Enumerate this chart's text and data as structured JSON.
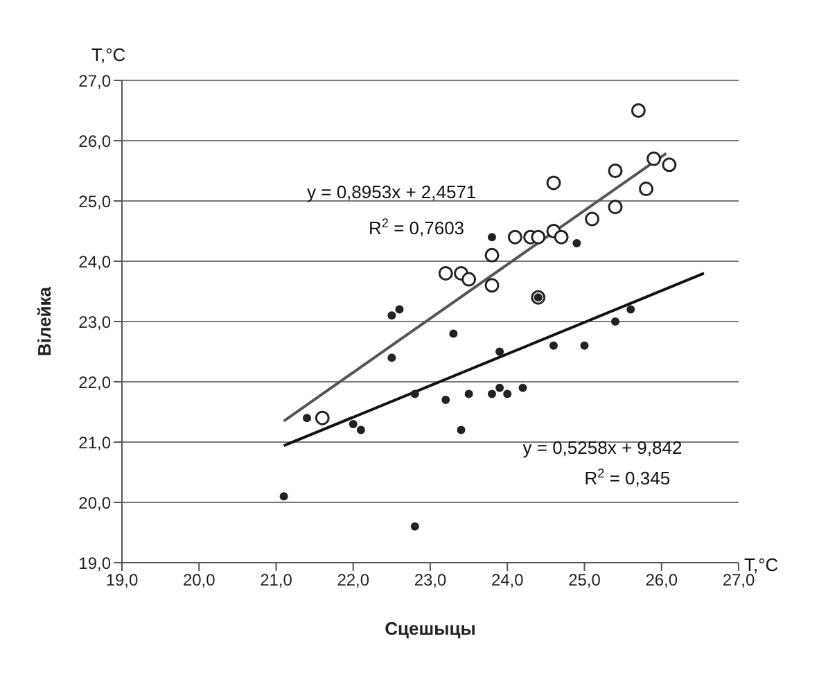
{
  "chart_data": {
    "type": "scatter",
    "xlabel": "Сцешыцы",
    "ylabel": "Вілейка",
    "annotations": [
      "T,°C",
      "T,°C",
      "y = 0,8953x + 2,4571",
      "R$^{2}$ = 0,7603",
      "y = 0,5258x + 9,842",
      "R$^{2}$ = 0,345"
    ],
    "xlim": [
      19,
      27
    ],
    "xticks": [
      {
        "value": 19,
        "label": "19,0"
      },
      {
        "value": 20,
        "label": "20,0"
      },
      {
        "value": 21,
        "label": "21,0"
      },
      {
        "value": 22,
        "label": "22,0"
      },
      {
        "value": 23,
        "label": "23,0"
      },
      {
        "value": 24,
        "label": "24,0"
      },
      {
        "value": 25,
        "label": "25,0"
      },
      {
        "value": 26,
        "label": "26,0"
      },
      {
        "value": 27,
        "label": "27,0"
      }
    ],
    "ylim": [
      19,
      27
    ],
    "yticks": [
      {
        "value": 19,
        "label": "19,0"
      },
      {
        "value": 20,
        "label": "20,0"
      },
      {
        "value": 21,
        "label": "21,0"
      },
      {
        "value": 22,
        "label": "22,0"
      },
      {
        "value": 23,
        "label": "23,0"
      },
      {
        "value": 24,
        "label": "24,0"
      },
      {
        "value": 25,
        "label": "25,0"
      },
      {
        "value": 26,
        "label": "26,0"
      },
      {
        "value": 27,
        "label": "27,0"
      }
    ],
    "grid": "y",
    "legend": false,
    "series": [
      {
        "marker": "circle",
        "color": "#222222",
        "x": [
          21.6,
          23.2,
          23.4,
          23.5,
          23.8,
          23.8,
          24.1,
          24.3,
          24.4,
          24.6,
          24.7,
          24.6,
          25.1,
          25.4,
          25.4,
          25.8,
          25.9,
          26.1,
          25.7,
          24.4
        ],
        "values": [
          21.4,
          23.8,
          23.8,
          23.7,
          23.6,
          24.1,
          24.4,
          24.4,
          24.4,
          24.5,
          24.4,
          25.3,
          24.7,
          24.9,
          25.5,
          25.2,
          25.7,
          25.6,
          26.5,
          23.4
        ]
      },
      {
        "marker": "circle",
        "color": "#222222",
        "x": [
          22.5,
          22.6,
          23.3,
          23.8,
          24.9,
          24.4,
          24.6,
          25.0,
          25.4,
          25.6,
          22.5,
          23.9,
          21.4,
          22.0,
          22.1,
          22.8,
          23.2,
          23.5,
          23.8,
          23.9,
          24.0,
          23.4,
          21.1,
          22.8,
          24.2
        ],
        "values": [
          23.1,
          23.2,
          22.8,
          24.4,
          24.3,
          23.4,
          22.6,
          22.6,
          23.0,
          23.2,
          22.4,
          22.5,
          21.4,
          21.3,
          21.2,
          21.8,
          21.7,
          21.8,
          21.8,
          21.9,
          21.8,
          21.2,
          20.1,
          19.6,
          21.9
        ]
      },
      {
        "type": "line",
        "color": "#555555",
        "x": [
          21.1,
          26.06
        ],
        "values": [
          21.35,
          25.79
        ]
      },
      {
        "type": "line",
        "color": "#111111",
        "x": [
          21.1,
          26.55
        ],
        "values": [
          20.94,
          23.8
        ]
      }
    ]
  }
}
